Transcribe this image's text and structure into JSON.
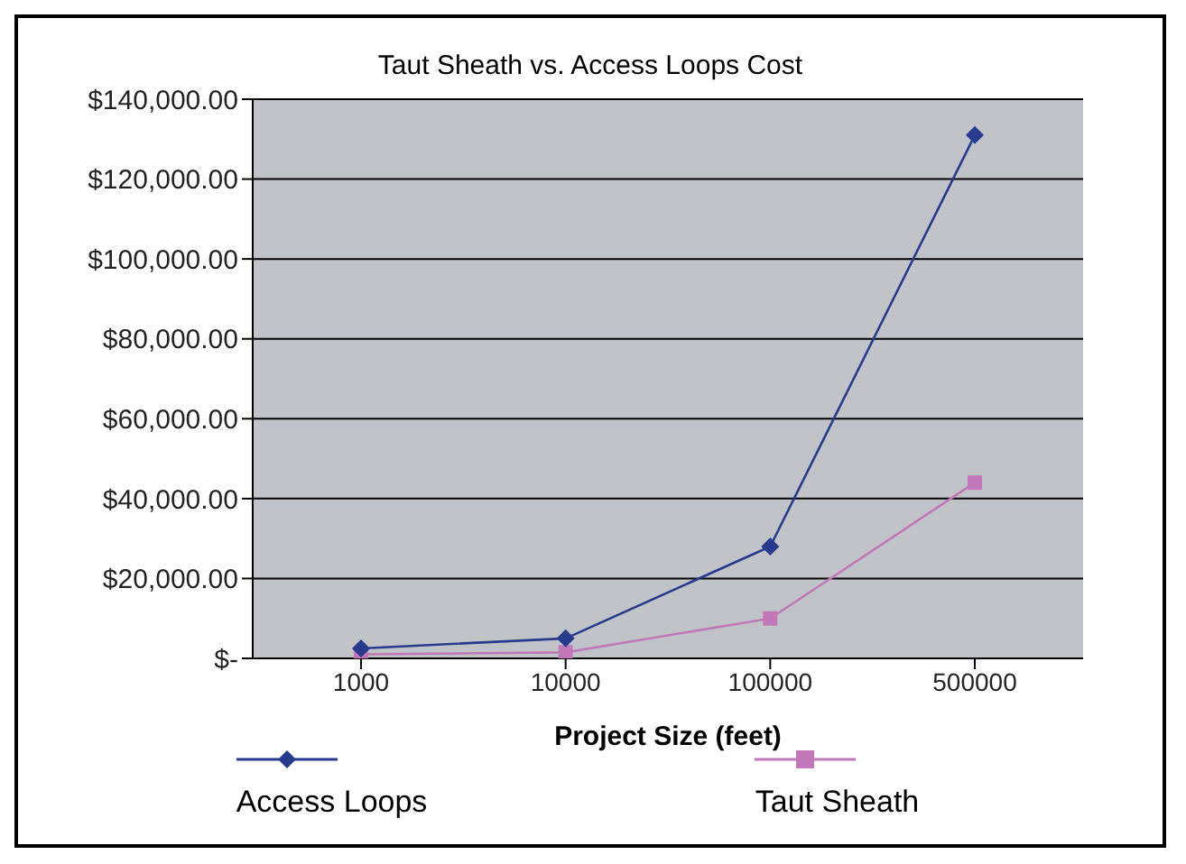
{
  "chart_data": {
    "type": "line",
    "title": "Taut Sheath vs. Access Loops Cost",
    "xlabel": "Project Size (feet)",
    "categories": [
      "1000",
      "10000",
      "100000",
      "500000"
    ],
    "series": [
      {
        "name": "Access Loops",
        "color": "#283a8c",
        "values": [
          2500,
          5000,
          28000,
          131000
        ],
        "marker": "diamond"
      },
      {
        "name": "Taut Sheath",
        "color": "#c078b8",
        "values": [
          1000,
          1500,
          10000,
          44000
        ],
        "marker": "square"
      }
    ],
    "ylim": [
      0,
      140000
    ],
    "yticks": [
      {
        "value": 0,
        "label": "$-"
      },
      {
        "value": 20000,
        "label": "$20,000.00"
      },
      {
        "value": 40000,
        "label": "$40,000.00"
      },
      {
        "value": 60000,
        "label": "$60,000.00"
      },
      {
        "value": 80000,
        "label": "$80,000.00"
      },
      {
        "value": 100000,
        "label": "$100,000.00"
      },
      {
        "value": 120000,
        "label": "$120,000.00"
      },
      {
        "value": 140000,
        "label": "$140,000.00"
      }
    ],
    "grid": "y",
    "legend": "bottom",
    "line_style": "solid"
  }
}
